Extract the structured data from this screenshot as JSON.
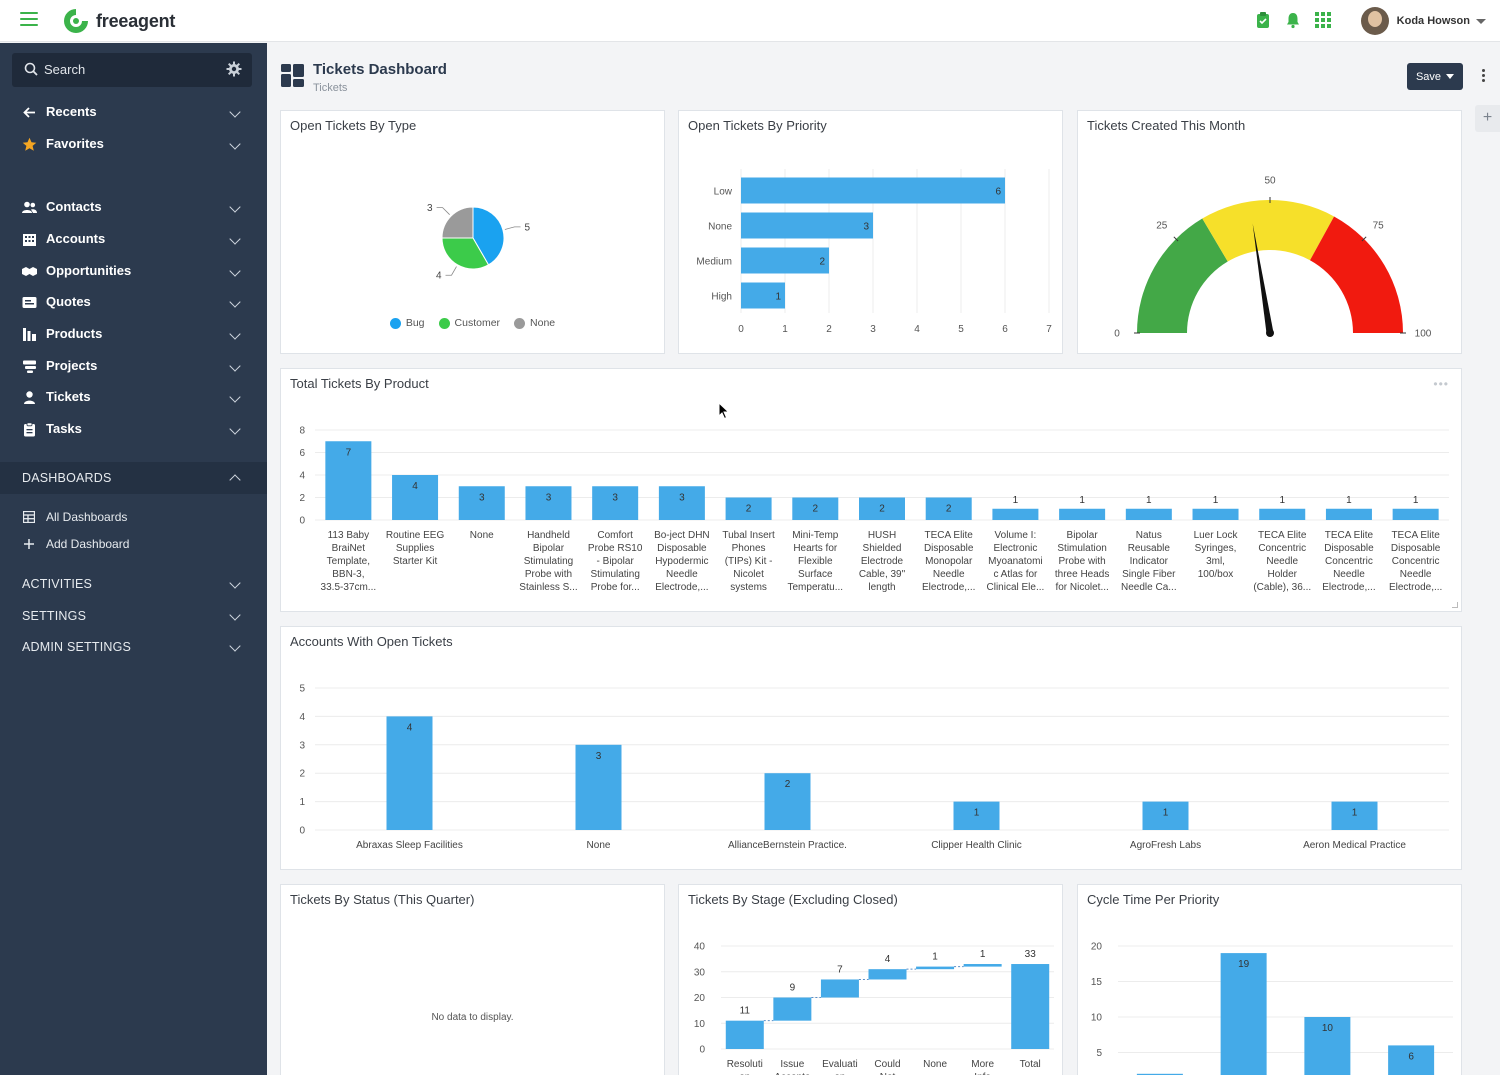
{
  "app": {
    "brand": "freeagent",
    "user_name": "Koda Howson"
  },
  "sidebar": {
    "search_placeholder": "Search",
    "items": [
      {
        "label": "Recents",
        "icon": "arrow-left-icon"
      },
      {
        "label": "Favorites",
        "icon": "star-icon"
      },
      {
        "label": "Contacts",
        "icon": "contacts-icon"
      },
      {
        "label": "Accounts",
        "icon": "building-icon"
      },
      {
        "label": "Opportunities",
        "icon": "handshake-icon"
      },
      {
        "label": "Quotes",
        "icon": "quote-icon"
      },
      {
        "label": "Products",
        "icon": "products-icon"
      },
      {
        "label": "Projects",
        "icon": "projects-icon"
      },
      {
        "label": "Tickets",
        "icon": "ticket-icon"
      },
      {
        "label": "Tasks",
        "icon": "tasks-icon"
      }
    ],
    "dashboards_label": "DASHBOARDS",
    "dashboard_items": [
      {
        "label": "All Dashboards",
        "icon": "table-icon"
      },
      {
        "label": "Add Dashboard",
        "icon": "plus-icon"
      }
    ],
    "sections": [
      "ACTIVITIES",
      "SETTINGS",
      "ADMIN SETTINGS"
    ]
  },
  "header": {
    "title": "Tickets Dashboard",
    "subtitle": "Tickets",
    "save_label": "Save"
  },
  "colors": {
    "bar": "#44aae8",
    "pie_bug": "#1aa2f0",
    "pie_customer": "#3ccb4a",
    "pie_none": "#9a9a9a",
    "gauge_green": "#43a847",
    "gauge_yellow": "#f6e02a",
    "gauge_red": "#f11a0f"
  },
  "cards": {
    "open_by_type": {
      "title": "Open Tickets By Type"
    },
    "open_by_priority": {
      "title": "Open Tickets By Priority"
    },
    "created_this_month": {
      "title": "Tickets Created This Month"
    },
    "by_product": {
      "title": "Total Tickets By Product"
    },
    "accounts_open": {
      "title": "Accounts With Open Tickets"
    },
    "by_status": {
      "title": "Tickets By Status (This Quarter)",
      "empty_text": "No data to display."
    },
    "by_stage": {
      "title": "Tickets By Stage (Excluding Closed)"
    },
    "cycle_time": {
      "title": "Cycle Time Per Priority"
    }
  },
  "chart_data": [
    {
      "id": "open_by_type",
      "type": "pie",
      "labels": [
        "Bug",
        "Customer",
        "None"
      ],
      "values": [
        5,
        4,
        3
      ],
      "legend": "bottom"
    },
    {
      "id": "open_by_priority",
      "type": "bar",
      "orientation": "horizontal",
      "categories": [
        "Low",
        "None",
        "Medium",
        "High"
      ],
      "values": [
        6,
        3,
        2,
        1
      ],
      "xlim": [
        0,
        7
      ],
      "xticks": [
        "0",
        "1",
        "2",
        "3",
        "4",
        "5",
        "6",
        "7"
      ],
      "grid": true
    },
    {
      "id": "created_this_month",
      "type": "gauge",
      "value": 45,
      "range": [
        0,
        100
      ],
      "tick_labels": [
        "0",
        "25",
        "50",
        "75",
        "100"
      ],
      "bands": [
        [
          0,
          33
        ],
        [
          33,
          66
        ],
        [
          66,
          100
        ]
      ]
    },
    {
      "id": "by_product",
      "type": "bar",
      "categories": [
        [
          "113 Baby",
          "BraiNet",
          "Template,",
          "BBN-3,",
          "33.5-37cm..."
        ],
        [
          "Routine EEG",
          "Supplies",
          "Starter Kit"
        ],
        [
          "None"
        ],
        [
          "Handheld",
          "Bipolar",
          "Stimulating",
          "Probe with",
          "Stainless S..."
        ],
        [
          "Comfort",
          "Probe RS10",
          "- Bipolar",
          "Stimulating",
          "Probe for..."
        ],
        [
          "Bo-ject DHN",
          "Disposable",
          "Hypodermic",
          "Needle",
          "Electrode,..."
        ],
        [
          "Tubal Insert",
          "Phones",
          "(TIPs) Kit -",
          "Nicolet",
          "systems"
        ],
        [
          "Mini-Temp",
          "Hearts for",
          "Flexible",
          "Surface",
          "Temperatu..."
        ],
        [
          "HUSH",
          "Shielded",
          "Electrode",
          "Cable, 39\"",
          "length"
        ],
        [
          "TECA Elite",
          "Disposable",
          "Monopolar",
          "Needle",
          "Electrode,..."
        ],
        [
          "Volume I:",
          "Electronic",
          "Myoanatomi",
          "c Atlas for",
          "Clinical Ele..."
        ],
        [
          "Bipolar",
          "Stimulation",
          "Probe with",
          "three Heads",
          "for Nicolet..."
        ],
        [
          "Natus",
          "Reusable",
          "Indicator",
          "Single Fiber",
          "Needle Ca..."
        ],
        [
          "Luer Lock",
          "Syringes,",
          "3ml,",
          "100/box"
        ],
        [
          "TECA Elite",
          "Concentric",
          "Needle",
          "Holder",
          "(Cable), 36..."
        ],
        [
          "TECA Elite",
          "Disposable",
          "Concentric",
          "Needle",
          "Electrode,..."
        ],
        [
          "TECA Elite",
          "Disposable",
          "Concentric",
          "Needle",
          "Electrode,..."
        ]
      ],
      "values": [
        7,
        4,
        3,
        3,
        3,
        3,
        2,
        2,
        2,
        2,
        1,
        1,
        1,
        1,
        1,
        1,
        1
      ],
      "ylim": [
        0,
        8
      ],
      "yticks": [
        "0",
        "2",
        "4",
        "6",
        "8"
      ],
      "grid": true
    },
    {
      "id": "accounts_open",
      "type": "bar",
      "categories": [
        "Abraxas Sleep Facilities",
        "None",
        "AllianceBernstein Practice.",
        "Clipper Health Clinic",
        "AgroFresh Labs",
        "Aeron Medical Practice"
      ],
      "values": [
        4,
        3,
        2,
        1,
        1,
        1
      ],
      "ylim": [
        0,
        5
      ],
      "yticks": [
        "0",
        "1",
        "2",
        "3",
        "4",
        "5"
      ],
      "grid": true
    },
    {
      "id": "by_stage",
      "type": "waterfall",
      "categories": [
        [
          "Resoluti",
          "on"
        ],
        [
          "Issue",
          "Accepte"
        ],
        [
          "Evaluati",
          "on"
        ],
        [
          "Could",
          "Not"
        ],
        [
          "None"
        ],
        [
          "More",
          "Info"
        ],
        [
          "Total"
        ]
      ],
      "values": [
        11,
        9,
        7,
        4,
        1,
        1,
        33
      ],
      "ylim": [
        0,
        40
      ],
      "yticks": [
        "0",
        "10",
        "20",
        "30",
        "40"
      ],
      "grid": true
    },
    {
      "id": "cycle_time",
      "type": "bar",
      "values": [
        2,
        19,
        10,
        6
      ],
      "bar_labels": [
        "",
        "19",
        "10",
        "6"
      ],
      "ylim": [
        0,
        20
      ],
      "yticks": [
        "5",
        "10",
        "15",
        "20"
      ],
      "grid": true
    }
  ]
}
